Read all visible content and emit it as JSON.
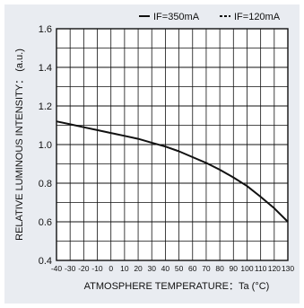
{
  "chart_data": {
    "type": "line",
    "title": "",
    "xlabel": "ATMOSPHERE TEMPERATURE：Ta  (°C)",
    "ylabel": "RELATIVE LUMINOUS INTENSITY： (a.u.)",
    "xlim": [
      -40,
      130
    ],
    "ylim": [
      0.4,
      1.6
    ],
    "x_ticks": [
      "-40",
      "-30",
      "-20",
      "-10",
      "0",
      "10",
      "20",
      "30",
      "40",
      "50",
      "60",
      "70",
      "80",
      "90",
      "100",
      "110",
      "120",
      "130"
    ],
    "y_ticks": [
      "0.4",
      "0.6",
      "0.8",
      "1.0",
      "1.2",
      "1.4",
      "1.6"
    ],
    "grid": true,
    "legend_position": "top-right",
    "legend": [
      {
        "label": "IF=350mA",
        "style": "solid"
      },
      {
        "label": "IF=120mA",
        "style": "dashed"
      }
    ],
    "series": [
      {
        "name": "IF=350mA",
        "x": [
          -40,
          -30,
          -20,
          -10,
          0,
          10,
          20,
          30,
          40,
          50,
          60,
          70,
          80,
          90,
          100,
          110,
          120,
          130
        ],
        "y": [
          1.12,
          1.105,
          1.09,
          1.075,
          1.06,
          1.045,
          1.03,
          1.01,
          0.99,
          0.965,
          0.935,
          0.905,
          0.87,
          0.83,
          0.785,
          0.73,
          0.67,
          0.6
        ]
      }
    ],
    "colors": {
      "line": "#111111",
      "grid": "#111111",
      "background": "#ffffff",
      "panel": "#e9ecf1"
    }
  }
}
